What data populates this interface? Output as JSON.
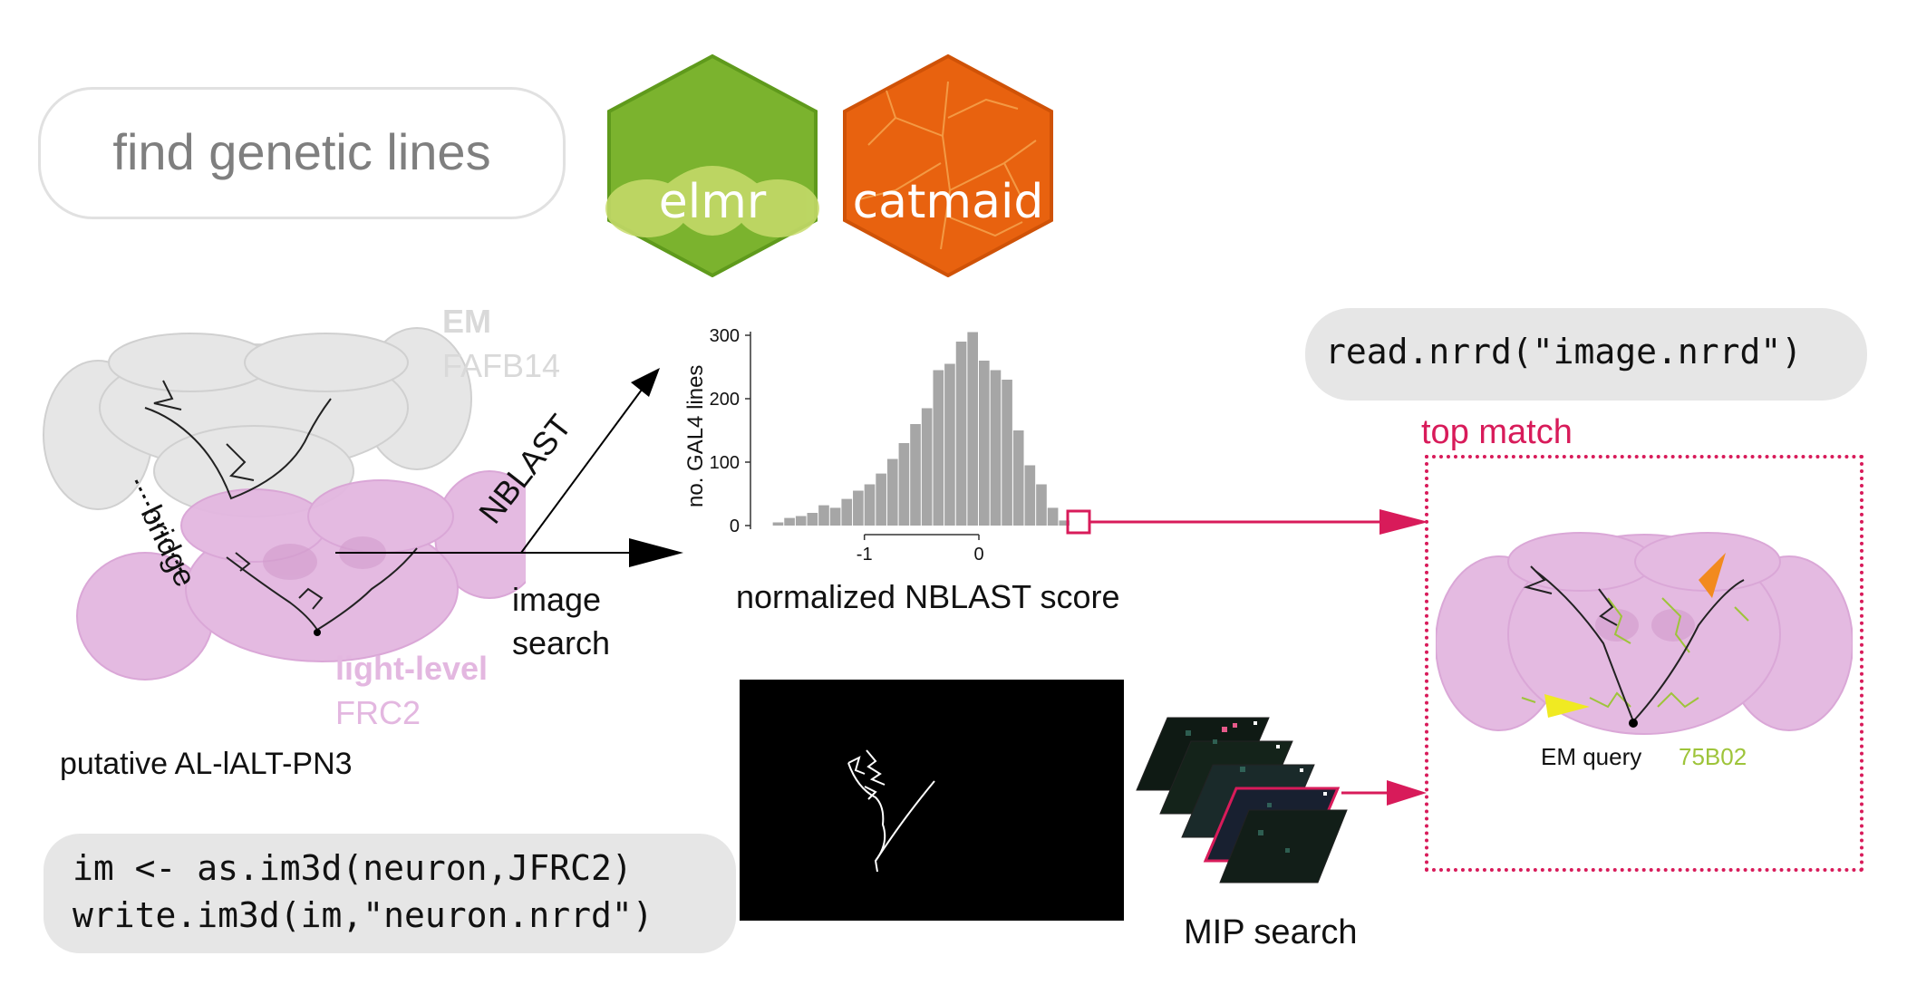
{
  "title_pill": {
    "text": "find genetic lines"
  },
  "logos": {
    "elmr": {
      "label": "elmr",
      "color": "#7bb32e"
    },
    "catmaid": {
      "label": "catmaid",
      "color": "#e8620f"
    }
  },
  "brain_em": {
    "line1": "EM",
    "line2": "FAFB14"
  },
  "brain_light": {
    "line1": "light-level",
    "line2": "FRC2"
  },
  "bridge_label": "bridge",
  "neuron_label": "putative AL-lALT-PN3",
  "arrows": {
    "nblast": "NBLAST",
    "image_search": "image\nsearch"
  },
  "chart_data": {
    "type": "bar",
    "xlabel": "normalized NBLAST score",
    "ylabel": "no. GAL4 lines",
    "x_ticks": [
      -1,
      0
    ],
    "y_ticks": [
      0,
      100,
      200,
      300
    ],
    "ylim": [
      0,
      320
    ],
    "xlim": [
      -1.9,
      0.95
    ],
    "bin_width": 0.1,
    "bin_starts": [
      -1.8,
      -1.7,
      -1.6,
      -1.5,
      -1.4,
      -1.3,
      -1.2,
      -1.1,
      -1.0,
      -0.9,
      -0.8,
      -0.7,
      -0.6,
      -0.5,
      -0.4,
      -0.3,
      -0.2,
      -0.1,
      0.0,
      0.1,
      0.2,
      0.3,
      0.4,
      0.5,
      0.6,
      0.7
    ],
    "values": [
      5,
      12,
      15,
      20,
      32,
      28,
      42,
      55,
      65,
      82,
      105,
      130,
      160,
      185,
      245,
      255,
      290,
      305,
      260,
      245,
      230,
      150,
      95,
      65,
      28,
      8
    ],
    "bar_color": "#a6a6a6",
    "highlight_color": "#d81b5a"
  },
  "read_code": "read.nrrd(\"image.nrrd\")",
  "top_match": {
    "label": "top match",
    "em_query": "EM query",
    "line_id": "75B02",
    "color": "#d81b5a"
  },
  "write_code": {
    "line1": "im <- as.im3d(neuron,JFRC2)",
    "line2": "write.im3d(im,\"neuron.nrrd\")"
  },
  "mip_label": "MIP search",
  "colors": {
    "accent": "#d81b5a",
    "pink": "#e3b7e0",
    "lime": "#9ec43a",
    "gray_text": "#7a7a7a"
  }
}
